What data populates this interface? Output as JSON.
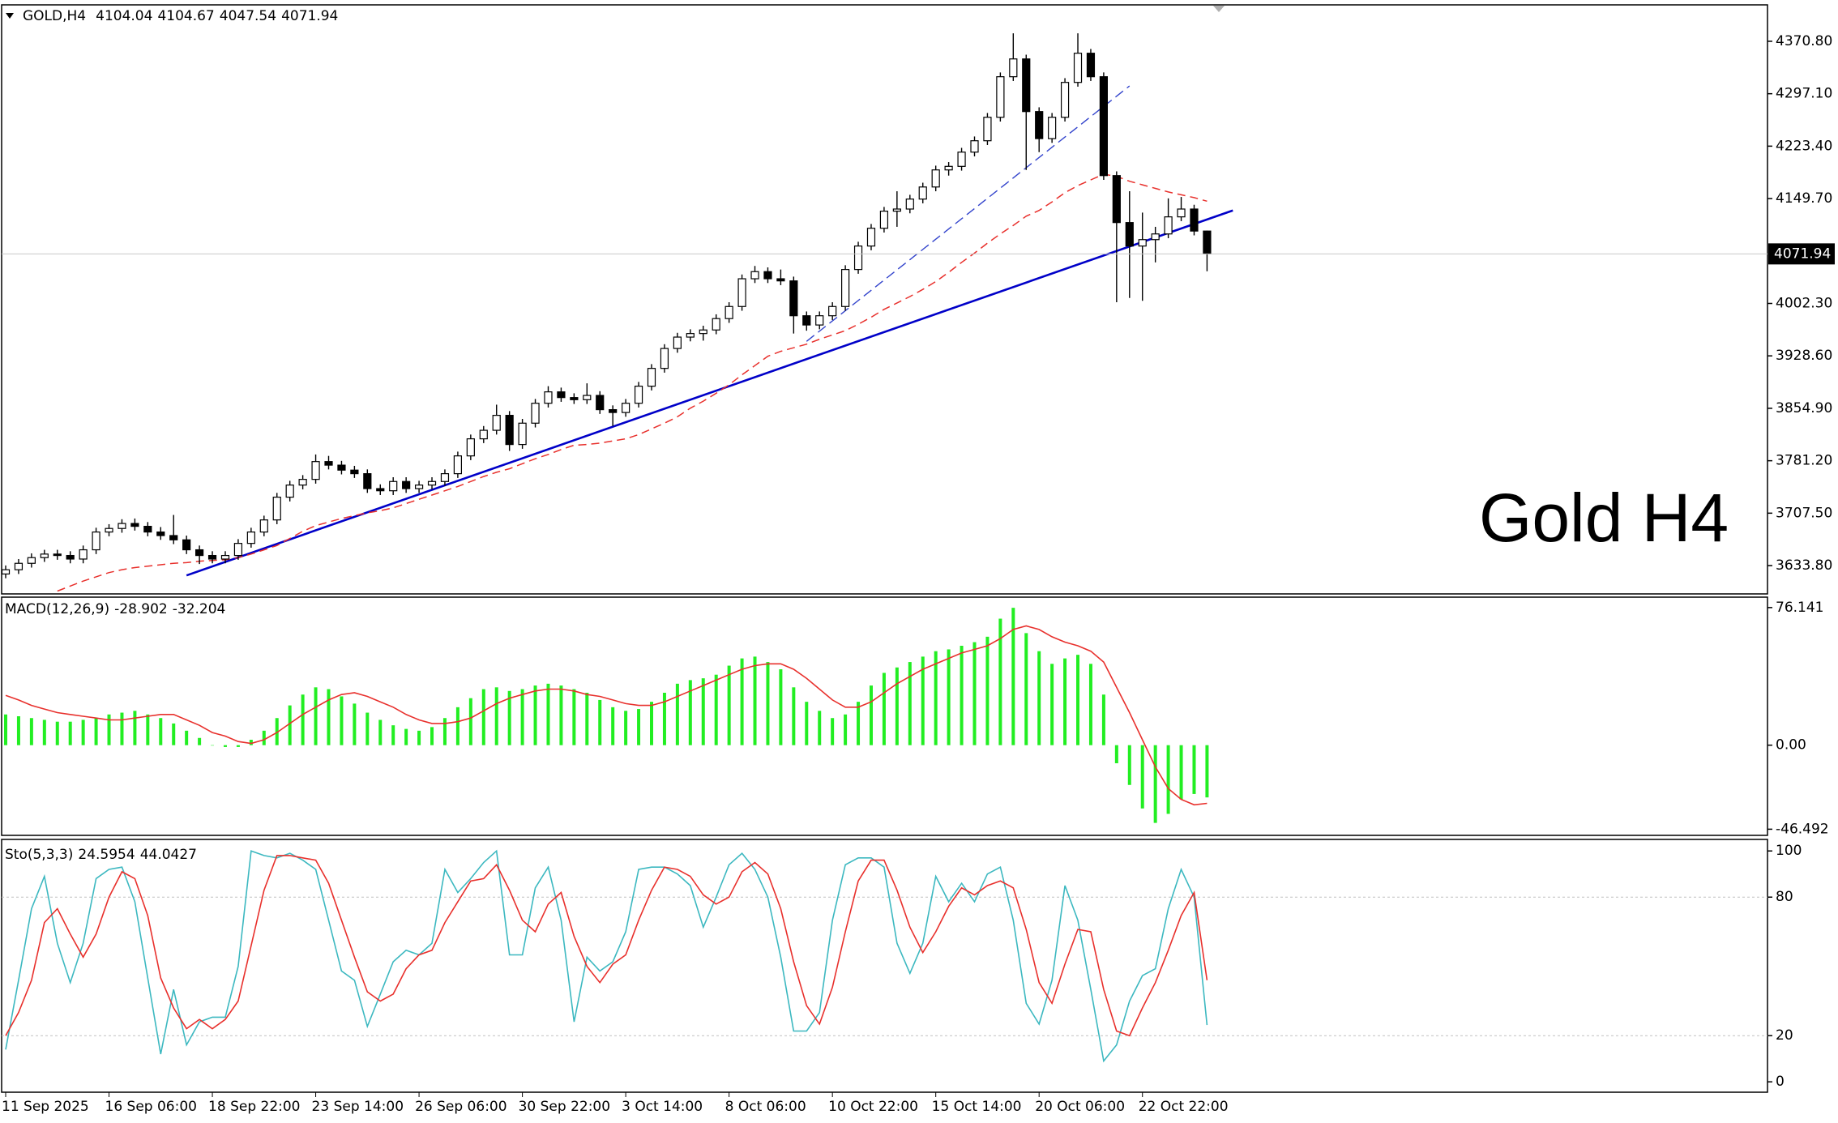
{
  "chart_data": [
    {
      "type": "candlestick",
      "title": "GOLD,H4",
      "annotation": "Gold H4",
      "open": [
        3622,
        3628,
        3637,
        3645,
        3650,
        3648,
        3643,
        3656,
        3681,
        3686,
        3693,
        3689,
        3681,
        3676,
        3670,
        3656,
        3648,
        3643,
        3648,
        3665,
        3681,
        3698,
        3730,
        3747,
        3755,
        3780,
        3775,
        3768,
        3763,
        3742,
        3739,
        3752,
        3742,
        3747,
        3752,
        3763,
        3788,
        3812,
        3824,
        3845,
        3804,
        3834,
        3862,
        3878,
        3870,
        3867,
        3873,
        3853,
        3849,
        3862,
        3886,
        3911,
        3939,
        3955,
        3960,
        3965,
        3981,
        3998,
        4037,
        4047,
        4037,
        4034,
        3985,
        3972,
        3985,
        3998,
        4050,
        4083,
        4108,
        4132,
        4135,
        4149,
        4166,
        4190,
        4195,
        4215,
        4231,
        4264,
        4321,
        4346,
        4272,
        4234,
        4264,
        4313,
        4354,
        4321,
        4182,
        4116,
        4083,
        4092,
        4100,
        4124,
        4135,
        4104.04
      ],
      "high": [
        3634,
        3643,
        3651,
        3656,
        3656,
        3654,
        3662,
        3687,
        3692,
        3699,
        3700,
        3695,
        3688,
        3705,
        3676,
        3662,
        3654,
        3654,
        3671,
        3687,
        3704,
        3736,
        3753,
        3761,
        3790,
        3788,
        3781,
        3774,
        3769,
        3748,
        3758,
        3758,
        3753,
        3758,
        3769,
        3794,
        3818,
        3830,
        3860,
        3851,
        3840,
        3868,
        3886,
        3884,
        3876,
        3890,
        3879,
        3859,
        3868,
        3892,
        3917,
        3945,
        3961,
        3966,
        3971,
        3987,
        4004,
        4043,
        4055,
        4053,
        4050,
        4040,
        3991,
        3991,
        4004,
        4056,
        4089,
        4114,
        4138,
        4160,
        4155,
        4172,
        4196,
        4201,
        4221,
        4237,
        4270,
        4327,
        4382,
        4352,
        4278,
        4270,
        4319,
        4382,
        4360,
        4327,
        4188,
        4160,
        4130,
        4110,
        4150,
        4152,
        4141,
        4104.67
      ],
      "low": [
        3616,
        3622,
        3631,
        3639,
        3642,
        3637,
        3637,
        3650,
        3675,
        3680,
        3683,
        3675,
        3670,
        3664,
        3650,
        3636,
        3637,
        3637,
        3642,
        3659,
        3675,
        3692,
        3724,
        3741,
        3749,
        3769,
        3762,
        3757,
        3736,
        3733,
        3733,
        3736,
        3736,
        3741,
        3746,
        3757,
        3782,
        3806,
        3818,
        3795,
        3798,
        3828,
        3856,
        3864,
        3861,
        3861,
        3847,
        3830,
        3843,
        3856,
        3880,
        3905,
        3933,
        3949,
        3950,
        3959,
        3975,
        3992,
        4031,
        4031,
        4028,
        3960,
        3964,
        3966,
        3979,
        3992,
        4044,
        4077,
        4102,
        4110,
        4129,
        4143,
        4160,
        4182,
        4189,
        4209,
        4225,
        4258,
        4315,
        4190,
        4215,
        4228,
        4258,
        4307,
        4315,
        4176,
        4004,
        4010,
        4006,
        4060,
        4094,
        4118,
        4098,
        4047.54
      ],
      "close": [
        3628,
        3637,
        3645,
        3650,
        3648,
        3643,
        3656,
        3681,
        3686,
        3693,
        3689,
        3681,
        3676,
        3670,
        3656,
        3648,
        3643,
        3648,
        3665,
        3681,
        3698,
        3730,
        3747,
        3755,
        3780,
        3775,
        3768,
        3763,
        3742,
        3739,
        3752,
        3742,
        3747,
        3752,
        3763,
        3788,
        3812,
        3824,
        3845,
        3804,
        3834,
        3862,
        3878,
        3870,
        3867,
        3873,
        3853,
        3849,
        3862,
        3886,
        3911,
        3939,
        3955,
        3960,
        3965,
        3981,
        3998,
        4037,
        4047,
        4037,
        4034,
        3985,
        3972,
        3985,
        3998,
        4050,
        4083,
        4108,
        4132,
        4135,
        4149,
        4166,
        4190,
        4195,
        4215,
        4231,
        4264,
        4321,
        4346,
        4272,
        4234,
        4264,
        4313,
        4354,
        4321,
        4182,
        4116,
        4083,
        4092,
        4100,
        4124,
        4135,
        4104.04,
        4071.94
      ],
      "up_color": "#ffffff",
      "down_color": "#000000",
      "ma": {
        "color": "#e8302c",
        "values": [
          null,
          null,
          null,
          null,
          3598,
          3605,
          3612,
          3618,
          3624,
          3628,
          3631,
          3633,
          3635,
          3637,
          3638,
          3640,
          3641,
          3642,
          3645,
          3650,
          3656,
          3662,
          3672,
          3682,
          3690,
          3695,
          3700,
          3704,
          3708,
          3711,
          3715,
          3721,
          3727,
          3733,
          3739,
          3745,
          3752,
          3759,
          3765,
          3770,
          3777,
          3784,
          3790,
          3797,
          3803,
          3804,
          3806,
          3809,
          3812,
          3818,
          3826,
          3834,
          3843,
          3855,
          3865,
          3876,
          3888,
          3902,
          3915,
          3928,
          3935,
          3940,
          3945,
          3952,
          3958,
          3964,
          3973,
          3983,
          3994,
          4003,
          4012,
          4022,
          4033,
          4046,
          4060,
          4073,
          4087,
          4100,
          4112,
          4125,
          4133,
          4145,
          4158,
          4168,
          4176,
          4184,
          4181,
          4174,
          4169,
          4164,
          4159,
          4155,
          4151,
          4146
        ]
      },
      "trendlines": [
        {
          "x": [
            14,
            95
          ],
          "y": [
            3620,
            4133
          ],
          "color": "#0000c8",
          "dashed": false
        },
        {
          "x": [
            62,
            87
          ],
          "y": [
            3949,
            4308
          ],
          "color": "#3344cc",
          "dashed": true
        }
      ],
      "ylim": [
        3594,
        4422
      ],
      "yticks": [
        {
          "value": 4370.8,
          "label": "4370.80"
        },
        {
          "value": 4297.1,
          "label": "4297.10"
        },
        {
          "value": 4223.4,
          "label": "4223.40"
        },
        {
          "value": 4149.7,
          "label": "4149.70"
        },
        {
          "value": 4002.3,
          "label": "4002.30"
        },
        {
          "value": 3928.6,
          "label": "3928.60"
        },
        {
          "value": 3854.9,
          "label": "3854.90"
        },
        {
          "value": 3781.2,
          "label": "3781.20"
        },
        {
          "value": 3707.5,
          "label": "3707.50"
        },
        {
          "value": 3633.8,
          "label": "3633.80"
        }
      ]
    },
    {
      "type": "macd",
      "title": "MACD(12,26,9)",
      "histogram": {
        "color": "#22ee22",
        "values": [
          17,
          16,
          15,
          14,
          13,
          13,
          14,
          15,
          17,
          18,
          19,
          17,
          15,
          12,
          8,
          4,
          0,
          -1,
          -1,
          3,
          8,
          15,
          22,
          28,
          32,
          31,
          27,
          23,
          18,
          14,
          11,
          9,
          8,
          10,
          15,
          21,
          26,
          31,
          32,
          30,
          31,
          33,
          34,
          33,
          31,
          29,
          25,
          21,
          19,
          20,
          24,
          29,
          34,
          36,
          37,
          39,
          44,
          48,
          49,
          46,
          42,
          32,
          24,
          19,
          15,
          17,
          24,
          33,
          40,
          43,
          46,
          49,
          52,
          53,
          55,
          57,
          60,
          70,
          76,
          62,
          52,
          45,
          48,
          50,
          45,
          28,
          -10,
          -22,
          -35,
          -43,
          -38,
          -30,
          -27,
          -28.902
        ]
      },
      "signal": {
        "color": "#e8302c",
        "values": [
          27.5,
          25,
          22,
          20,
          18,
          17,
          16,
          15,
          14,
          14,
          15,
          16,
          17,
          17,
          14,
          11,
          7,
          5,
          2,
          1,
          3,
          7,
          12,
          17,
          21,
          25,
          28,
          29,
          27,
          24,
          21,
          17,
          14,
          12,
          12,
          13,
          15,
          19,
          23,
          26,
          28,
          30,
          31,
          31,
          30,
          28,
          27,
          25,
          23,
          22,
          22,
          24,
          27,
          30,
          33,
          36,
          39,
          42,
          44,
          45,
          45,
          42,
          37,
          31,
          25,
          21,
          21,
          24,
          29,
          34,
          38,
          42,
          45,
          48,
          51,
          53,
          55,
          59,
          64,
          66,
          64,
          60,
          57,
          55,
          52,
          46,
          32,
          18,
          3,
          -12,
          -24,
          -30,
          -33,
          -32.204
        ]
      },
      "ylim": [
        -49.9,
        81.9
      ],
      "yticks": [
        76.141,
        {
          "value": 0,
          "label": "0.00"
        },
        -46.492
      ]
    },
    {
      "type": "stochastic",
      "title": "Sto(5,3,3)",
      "main": {
        "color": "#3cb8c0",
        "values": [
          14,
          44,
          75,
          89,
          60,
          43,
          60,
          88,
          92,
          93,
          78,
          45,
          12,
          40,
          16,
          26,
          28,
          28,
          50,
          100,
          98,
          97,
          99,
          96,
          92,
          70,
          48,
          44,
          24,
          38,
          52,
          57,
          55,
          60,
          92,
          82,
          88,
          95,
          100,
          55,
          55,
          84,
          93,
          70,
          26,
          54,
          48,
          52,
          65,
          92,
          93,
          93,
          90,
          85,
          67,
          80,
          94,
          99,
          92,
          80,
          54,
          22,
          22,
          30,
          70,
          94,
          97,
          97,
          93,
          60,
          47,
          60,
          89,
          78,
          86,
          78,
          90,
          93,
          70,
          34,
          25,
          44,
          85,
          70,
          40,
          9,
          16,
          35,
          46,
          49,
          75,
          92,
          80,
          24.5954
        ]
      },
      "signal": {
        "color": "#e8302c",
        "values": [
          20,
          30,
          44,
          69,
          75,
          64,
          54,
          64,
          80,
          91,
          88,
          72,
          45,
          32,
          23,
          27,
          23,
          27,
          35,
          59,
          83,
          98,
          98,
          97,
          96,
          86,
          70,
          54,
          39,
          35,
          38,
          49,
          55,
          57,
          69,
          78,
          87,
          88,
          94,
          83,
          70,
          65,
          77,
          82,
          63,
          50,
          43,
          51,
          55,
          70,
          83,
          93,
          92,
          89,
          81,
          77,
          80,
          91,
          95,
          90,
          75,
          52,
          33,
          25,
          41,
          65,
          87,
          96,
          96,
          83,
          67,
          56,
          65,
          76,
          84,
          81,
          85,
          87,
          84,
          66,
          43,
          34,
          51,
          66,
          65,
          40,
          22,
          20,
          32,
          43,
          57,
          72,
          82,
          44.0427
        ]
      },
      "levels": [
        20,
        80
      ],
      "ylim": [
        -4.5,
        105
      ],
      "yticks": [
        100,
        80,
        20,
        0
      ],
      "categories": [
        "11 Sep 2025",
        null,
        null,
        null,
        null,
        null,
        null,
        null,
        "16 Sep 06:00",
        null,
        null,
        null,
        null,
        null,
        null,
        null,
        "18 Sep 22:00",
        null,
        null,
        null,
        null,
        null,
        null,
        null,
        "23 Sep 14:00",
        null,
        null,
        null,
        null,
        null,
        null,
        null,
        "26 Sep 06:00",
        null,
        null,
        null,
        null,
        null,
        null,
        null,
        "30 Sep 22:00",
        null,
        null,
        null,
        null,
        null,
        null,
        null,
        "3 Oct 14:00",
        null,
        null,
        null,
        null,
        null,
        null,
        null,
        "8 Oct 06:00",
        null,
        null,
        null,
        null,
        null,
        null,
        null,
        "10 Oct 22:00",
        null,
        null,
        null,
        null,
        null,
        null,
        null,
        "15 Oct 14:00",
        null,
        null,
        null,
        null,
        null,
        null,
        null,
        "20 Oct 06:00",
        null,
        null,
        null,
        null,
        null,
        null,
        null,
        "22 Oct 22:00",
        null,
        null,
        null,
        null,
        null
      ]
    }
  ]
}
